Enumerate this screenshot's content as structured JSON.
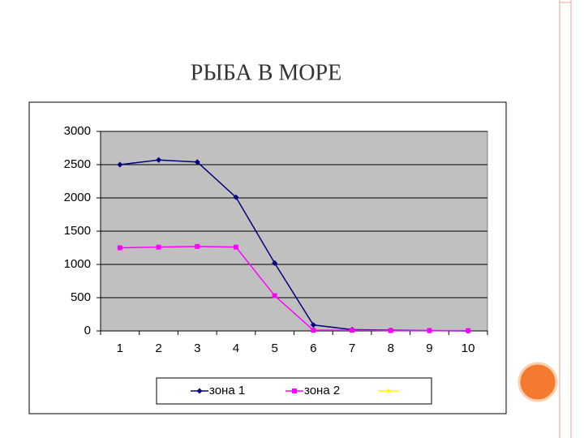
{
  "chart_data": {
    "type": "line",
    "title": "РЫБА В МОРЕ",
    "categories": [
      1,
      2,
      3,
      4,
      5,
      6,
      7,
      8,
      9,
      10
    ],
    "series": [
      {
        "name": "зона 1",
        "color": "#000080",
        "marker": "diamond",
        "values": [
          2500,
          2570,
          2540,
          2010,
          1020,
          90,
          20,
          10,
          5,
          0
        ]
      },
      {
        "name": "зона 2",
        "color": "#ff00ff",
        "marker": "square",
        "values": [
          1250,
          1260,
          1270,
          1260,
          530,
          10,
          10,
          5,
          5,
          5
        ]
      }
    ],
    "ylim": [
      0,
      3000
    ],
    "yticks": [
      0,
      500,
      1000,
      1500,
      2000,
      2500,
      3000
    ],
    "grid": true,
    "legend": "bottom"
  }
}
